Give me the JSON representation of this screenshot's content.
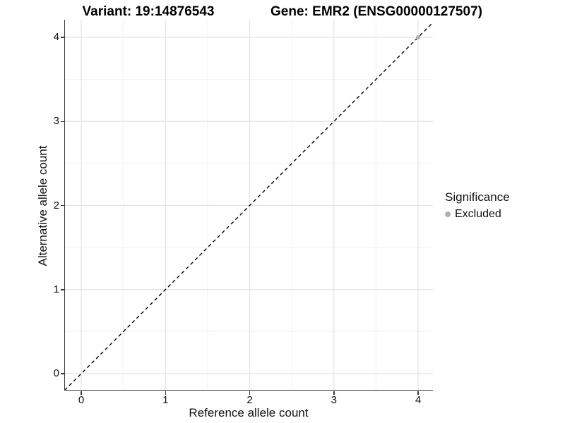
{
  "header": {
    "variant_title": "Variant: 19:14876543",
    "gene_title": "Gene: EMR2 (ENSG00000127507)"
  },
  "axes": {
    "x": {
      "label": "Reference allele count",
      "ticks": [
        "0",
        "1",
        "2",
        "3",
        "4"
      ]
    },
    "y": {
      "label": "Alternative allele count",
      "ticks": [
        "0",
        "1",
        "2",
        "3",
        "4"
      ]
    }
  },
  "legend": {
    "title": "Significance",
    "items": [
      {
        "label": "Excluded",
        "color": "#b0b0b0"
      }
    ]
  },
  "colors": {
    "point_excluded": "#b0b0b0",
    "axis_line": "#3a3a3a",
    "grid_major": "#e3e3e3",
    "grid_minor": "#f0f0f0",
    "identity_line": "#000000"
  },
  "chart_data": {
    "type": "scatter",
    "title": "Variant: 19:14876543 / Gene: EMR2 (ENSG00000127507)",
    "xlabel": "Reference allele count",
    "ylabel": "Alternative allele count",
    "xlim": [
      -0.2,
      4.2
    ],
    "ylim": [
      -0.2,
      4.2
    ],
    "x_ticks": [
      0,
      1,
      2,
      3,
      4
    ],
    "y_ticks": [
      0,
      1,
      2,
      3,
      4
    ],
    "grid": "major+minor",
    "legend_position": "right",
    "reference_line": {
      "kind": "identity",
      "style": "dashed",
      "from": [
        -0.25,
        -0.25
      ],
      "to": [
        4.25,
        4.25
      ]
    },
    "series": [
      {
        "name": "Excluded",
        "color": "#b0b0b0",
        "points": [
          [
            4,
            4
          ]
        ]
      }
    ]
  }
}
